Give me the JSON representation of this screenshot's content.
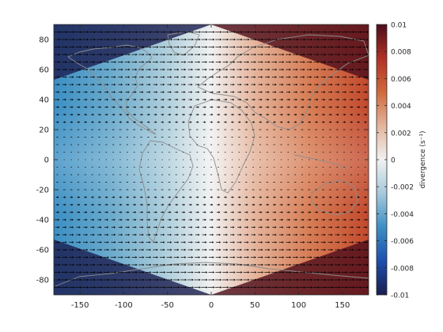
{
  "chart_data": {
    "type": "heatmap",
    "title": "",
    "xlabel": "",
    "ylabel": "",
    "xlim": [
      -180,
      180
    ],
    "ylim": [
      -90,
      90
    ],
    "x_ticks": [
      -150,
      -100,
      -50,
      0,
      50,
      100,
      150
    ],
    "y_ticks": [
      -80,
      -60,
      -40,
      -20,
      0,
      20,
      40,
      60,
      80
    ],
    "colorbar": {
      "label": "divergence (s⁻¹)",
      "clim": [
        -0.01,
        0.01
      ],
      "ticks": [
        -0.01,
        -0.008,
        -0.006,
        -0.004,
        -0.002,
        0,
        0.002,
        0.004,
        0.006,
        0.008,
        0.01
      ],
      "tick_labels": [
        "-0.01",
        "-0.008",
        "-0.006",
        "-0.004",
        "-0.002",
        "0",
        "0.002",
        "0.004",
        "0.006",
        "0.008",
        "0.01"
      ],
      "colormap": "balance (dark blue → white → dark red)",
      "colors": [
        "#1b1d4f",
        "#1d4fae",
        "#3c8fc4",
        "#a6c9dc",
        "#f1f1f1",
        "#e4b59c",
        "#d1693c",
        "#b03125",
        "#4d0e1c"
      ]
    },
    "field_description": "divergence increases from negative (west) to positive (east), zero at longitude 0; magnitude grows toward the poles",
    "quiver": {
      "direction": "eastward",
      "lat_rows": [
        -85,
        -80,
        -75,
        -70,
        -65,
        -60,
        -55,
        -50,
        -45,
        -40,
        -35,
        -30,
        -25,
        -20,
        -15,
        -10,
        -5,
        0,
        5,
        10,
        15,
        20,
        25,
        30,
        35,
        40,
        45,
        50,
        55,
        60,
        65,
        70,
        75,
        80,
        85
      ],
      "color": "#000000"
    },
    "overlay": "coastlines and country borders (gray)",
    "grid": false
  }
}
